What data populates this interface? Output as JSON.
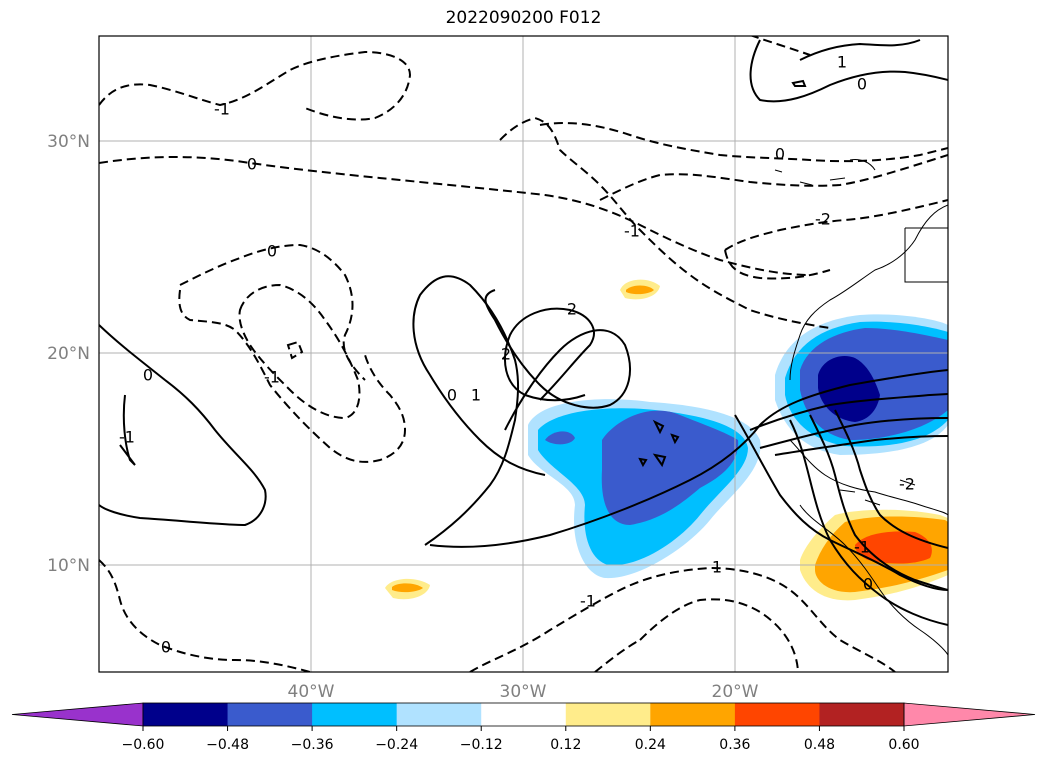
{
  "title": "2022090200 F012",
  "map": {
    "lat_labels": [
      "30°N",
      "20°N",
      "10°N"
    ],
    "lon_labels": [
      "40°W",
      "30°W",
      "20°W"
    ],
    "grid": true
  },
  "contour_labels": [
    "-1",
    "0",
    "0",
    "-1",
    "0",
    "-1",
    "0",
    "1",
    "2",
    "2",
    "0",
    "1",
    "-1",
    "-2",
    "0",
    "1",
    "-1",
    "0",
    "-1",
    "0",
    "-2"
  ],
  "colorbar": {
    "ticks": [
      "−0.60",
      "−0.48",
      "−0.36",
      "−0.24",
      "−0.12",
      "0.12",
      "0.24",
      "0.36",
      "0.48",
      "0.60"
    ],
    "colors": [
      "#9932cc",
      "#00008b",
      "#3a5bcd",
      "#00bfff",
      "#b0e2ff",
      "#ffffff",
      "#ffec8b",
      "#ffa500",
      "#ff4500",
      "#b22222",
      "#ff88aa"
    ],
    "extend": "both"
  }
}
